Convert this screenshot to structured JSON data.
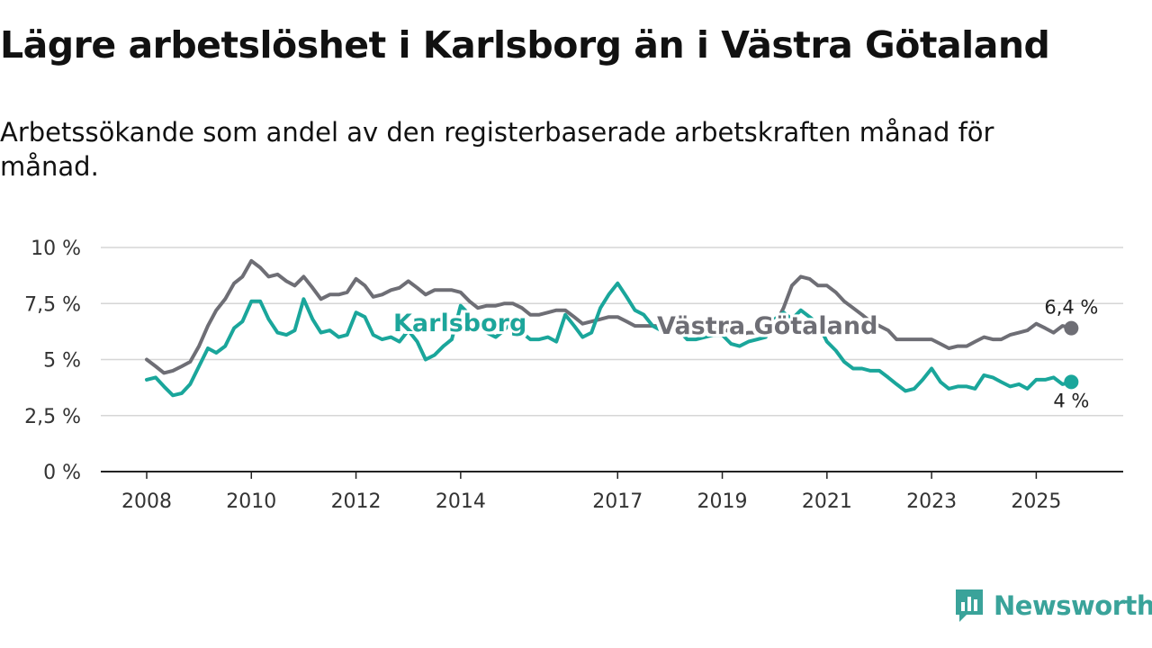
{
  "header": {
    "title": "Lägre arbetslöshet i Karlsborg än i Västra Götaland",
    "subtitle": "Arbetssökande som andel av den registerbaserade arbetskraften månad för månad."
  },
  "brand": {
    "name": "Newsworthy",
    "color": "#3aa39a"
  },
  "chart_data": {
    "type": "line",
    "title": "Lägre arbetslöshet i Karlsborg än i Västra Götaland",
    "subtitle": "Arbetssökande som andel av den registerbaserade arbetskraften månad för månad.",
    "xlabel": "",
    "ylabel": "",
    "xlim": [
      2008,
      2025.75
    ],
    "ylim": [
      0,
      10
    ],
    "yticks": [
      0,
      2.5,
      5,
      7.5,
      10
    ],
    "ytick_labels": [
      "0 %",
      "2,5 %",
      "5 %",
      "7,5 %",
      "10 %"
    ],
    "xticks": [
      2008,
      2010,
      2012,
      2014,
      2017,
      2019,
      2021,
      2023,
      2025
    ],
    "xtick_labels": [
      "2008",
      "2010",
      "2012",
      "2014",
      "2017",
      "2019",
      "2021",
      "2023",
      "2025"
    ],
    "grid": true,
    "series": [
      {
        "name": "Västra Götaland",
        "color": "#6e6e75",
        "end_label": "6,4 %",
        "points": [
          [
            2008.0,
            5.0
          ],
          [
            2008.17,
            4.7
          ],
          [
            2008.33,
            4.4
          ],
          [
            2008.5,
            4.5
          ],
          [
            2008.67,
            4.7
          ],
          [
            2008.83,
            4.9
          ],
          [
            2009.0,
            5.6
          ],
          [
            2009.17,
            6.5
          ],
          [
            2009.33,
            7.2
          ],
          [
            2009.5,
            7.7
          ],
          [
            2009.67,
            8.4
          ],
          [
            2009.83,
            8.7
          ],
          [
            2010.0,
            9.4
          ],
          [
            2010.17,
            9.1
          ],
          [
            2010.33,
            8.7
          ],
          [
            2010.5,
            8.8
          ],
          [
            2010.67,
            8.5
          ],
          [
            2010.83,
            8.3
          ],
          [
            2011.0,
            8.7
          ],
          [
            2011.17,
            8.2
          ],
          [
            2011.33,
            7.7
          ],
          [
            2011.5,
            7.9
          ],
          [
            2011.67,
            7.9
          ],
          [
            2011.83,
            8.0
          ],
          [
            2012.0,
            8.6
          ],
          [
            2012.17,
            8.3
          ],
          [
            2012.33,
            7.8
          ],
          [
            2012.5,
            7.9
          ],
          [
            2012.67,
            8.1
          ],
          [
            2012.83,
            8.2
          ],
          [
            2013.0,
            8.5
          ],
          [
            2013.17,
            8.2
          ],
          [
            2013.33,
            7.9
          ],
          [
            2013.5,
            8.1
          ],
          [
            2013.67,
            8.1
          ],
          [
            2013.83,
            8.1
          ],
          [
            2014.0,
            8.0
          ],
          [
            2014.17,
            7.6
          ],
          [
            2014.33,
            7.3
          ],
          [
            2014.5,
            7.4
          ],
          [
            2014.67,
            7.4
          ],
          [
            2014.83,
            7.5
          ],
          [
            2015.0,
            7.5
          ],
          [
            2015.17,
            7.3
          ],
          [
            2015.33,
            7.0
          ],
          [
            2015.5,
            7.0
          ],
          [
            2015.67,
            7.1
          ],
          [
            2015.83,
            7.2
          ],
          [
            2016.0,
            7.2
          ],
          [
            2016.17,
            6.9
          ],
          [
            2016.33,
            6.6
          ],
          [
            2016.5,
            6.7
          ],
          [
            2016.67,
            6.8
          ],
          [
            2016.83,
            6.9
          ],
          [
            2017.0,
            6.9
          ],
          [
            2017.17,
            6.7
          ],
          [
            2017.33,
            6.5
          ],
          [
            2017.5,
            6.5
          ],
          [
            2017.67,
            6.5
          ],
          [
            2017.83,
            6.5
          ],
          [
            2018.0,
            6.6
          ],
          [
            2018.17,
            6.4
          ],
          [
            2018.33,
            6.2
          ],
          [
            2018.5,
            6.2
          ],
          [
            2018.67,
            6.3
          ],
          [
            2018.83,
            6.3
          ],
          [
            2019.0,
            6.4
          ],
          [
            2019.17,
            6.2
          ],
          [
            2019.33,
            6.1
          ],
          [
            2019.5,
            6.2
          ],
          [
            2019.67,
            6.2
          ],
          [
            2019.83,
            6.3
          ],
          [
            2020.0,
            6.5
          ],
          [
            2020.17,
            7.3
          ],
          [
            2020.33,
            8.3
          ],
          [
            2020.5,
            8.7
          ],
          [
            2020.67,
            8.6
          ],
          [
            2020.83,
            8.3
          ],
          [
            2021.0,
            8.3
          ],
          [
            2021.17,
            8.0
          ],
          [
            2021.33,
            7.6
          ],
          [
            2021.5,
            7.3
          ],
          [
            2021.67,
            7.0
          ],
          [
            2021.83,
            6.7
          ],
          [
            2022.0,
            6.5
          ],
          [
            2022.17,
            6.3
          ],
          [
            2022.33,
            5.9
          ],
          [
            2022.5,
            5.9
          ],
          [
            2022.67,
            5.9
          ],
          [
            2022.83,
            5.9
          ],
          [
            2023.0,
            5.9
          ],
          [
            2023.17,
            5.7
          ],
          [
            2023.33,
            5.5
          ],
          [
            2023.5,
            5.6
          ],
          [
            2023.67,
            5.6
          ],
          [
            2023.83,
            5.8
          ],
          [
            2024.0,
            6.0
          ],
          [
            2024.17,
            5.9
          ],
          [
            2024.33,
            5.9
          ],
          [
            2024.5,
            6.1
          ],
          [
            2024.67,
            6.2
          ],
          [
            2024.83,
            6.3
          ],
          [
            2025.0,
            6.6
          ],
          [
            2025.17,
            6.4
          ],
          [
            2025.33,
            6.2
          ],
          [
            2025.5,
            6.5
          ],
          [
            2025.67,
            6.4
          ]
        ]
      },
      {
        "name": "Karlsborg",
        "color": "#1aa69b",
        "end_label": "4 %",
        "points": [
          [
            2008.0,
            4.1
          ],
          [
            2008.17,
            4.2
          ],
          [
            2008.33,
            3.8
          ],
          [
            2008.5,
            3.4
          ],
          [
            2008.67,
            3.5
          ],
          [
            2008.83,
            3.9
          ],
          [
            2009.0,
            4.7
          ],
          [
            2009.17,
            5.5
          ],
          [
            2009.33,
            5.3
          ],
          [
            2009.5,
            5.6
          ],
          [
            2009.67,
            6.4
          ],
          [
            2009.83,
            6.7
          ],
          [
            2010.0,
            7.6
          ],
          [
            2010.17,
            7.6
          ],
          [
            2010.33,
            6.8
          ],
          [
            2010.5,
            6.2
          ],
          [
            2010.67,
            6.1
          ],
          [
            2010.83,
            6.3
          ],
          [
            2011.0,
            7.7
          ],
          [
            2011.17,
            6.8
          ],
          [
            2011.33,
            6.2
          ],
          [
            2011.5,
            6.3
          ],
          [
            2011.67,
            6.0
          ],
          [
            2011.83,
            6.1
          ],
          [
            2012.0,
            7.1
          ],
          [
            2012.17,
            6.9
          ],
          [
            2012.33,
            6.1
          ],
          [
            2012.5,
            5.9
          ],
          [
            2012.67,
            6.0
          ],
          [
            2012.83,
            5.8
          ],
          [
            2013.0,
            6.3
          ],
          [
            2013.17,
            5.8
          ],
          [
            2013.33,
            5.0
          ],
          [
            2013.5,
            5.2
          ],
          [
            2013.67,
            5.6
          ],
          [
            2013.83,
            5.9
          ],
          [
            2014.0,
            7.4
          ],
          [
            2014.17,
            7.0
          ],
          [
            2014.33,
            6.5
          ],
          [
            2014.5,
            6.2
          ],
          [
            2014.67,
            6.0
          ],
          [
            2014.83,
            6.3
          ],
          [
            2015.0,
            6.8
          ],
          [
            2015.17,
            6.2
          ],
          [
            2015.33,
            5.9
          ],
          [
            2015.5,
            5.9
          ],
          [
            2015.67,
            6.0
          ],
          [
            2015.83,
            5.8
          ],
          [
            2016.0,
            7.0
          ],
          [
            2016.17,
            6.5
          ],
          [
            2016.33,
            6.0
          ],
          [
            2016.5,
            6.2
          ],
          [
            2016.67,
            7.3
          ],
          [
            2016.83,
            7.9
          ],
          [
            2017.0,
            8.4
          ],
          [
            2017.17,
            7.8
          ],
          [
            2017.33,
            7.2
          ],
          [
            2017.5,
            7.0
          ],
          [
            2017.67,
            6.5
          ],
          [
            2017.83,
            6.3
          ],
          [
            2018.0,
            6.7
          ],
          [
            2018.17,
            6.3
          ],
          [
            2018.33,
            5.9
          ],
          [
            2018.5,
            5.9
          ],
          [
            2018.67,
            6.0
          ],
          [
            2018.83,
            6.1
          ],
          [
            2019.0,
            6.1
          ],
          [
            2019.17,
            5.7
          ],
          [
            2019.33,
            5.6
          ],
          [
            2019.5,
            5.8
          ],
          [
            2019.67,
            5.9
          ],
          [
            2019.83,
            6.0
          ],
          [
            2020.0,
            6.8
          ],
          [
            2020.17,
            7.1
          ],
          [
            2020.33,
            6.8
          ],
          [
            2020.5,
            7.2
          ],
          [
            2020.67,
            6.9
          ],
          [
            2020.83,
            6.6
          ],
          [
            2021.0,
            5.8
          ],
          [
            2021.17,
            5.4
          ],
          [
            2021.33,
            4.9
          ],
          [
            2021.5,
            4.6
          ],
          [
            2021.67,
            4.6
          ],
          [
            2021.83,
            4.5
          ],
          [
            2022.0,
            4.5
          ],
          [
            2022.17,
            4.2
          ],
          [
            2022.33,
            3.9
          ],
          [
            2022.5,
            3.6
          ],
          [
            2022.67,
            3.7
          ],
          [
            2022.83,
            4.1
          ],
          [
            2023.0,
            4.6
          ],
          [
            2023.17,
            4.0
          ],
          [
            2023.33,
            3.7
          ],
          [
            2023.5,
            3.8
          ],
          [
            2023.67,
            3.8
          ],
          [
            2023.83,
            3.7
          ],
          [
            2024.0,
            4.3
          ],
          [
            2024.17,
            4.2
          ],
          [
            2024.33,
            4.0
          ],
          [
            2024.5,
            3.8
          ],
          [
            2024.67,
            3.9
          ],
          [
            2024.83,
            3.7
          ],
          [
            2025.0,
            4.1
          ],
          [
            2025.17,
            4.1
          ],
          [
            2025.33,
            4.2
          ],
          [
            2025.5,
            3.9
          ],
          [
            2025.67,
            4.0
          ]
        ]
      }
    ],
    "annotations": [
      "Karlsborg",
      "Västra Götaland",
      "6,4 %",
      "4 %"
    ]
  }
}
